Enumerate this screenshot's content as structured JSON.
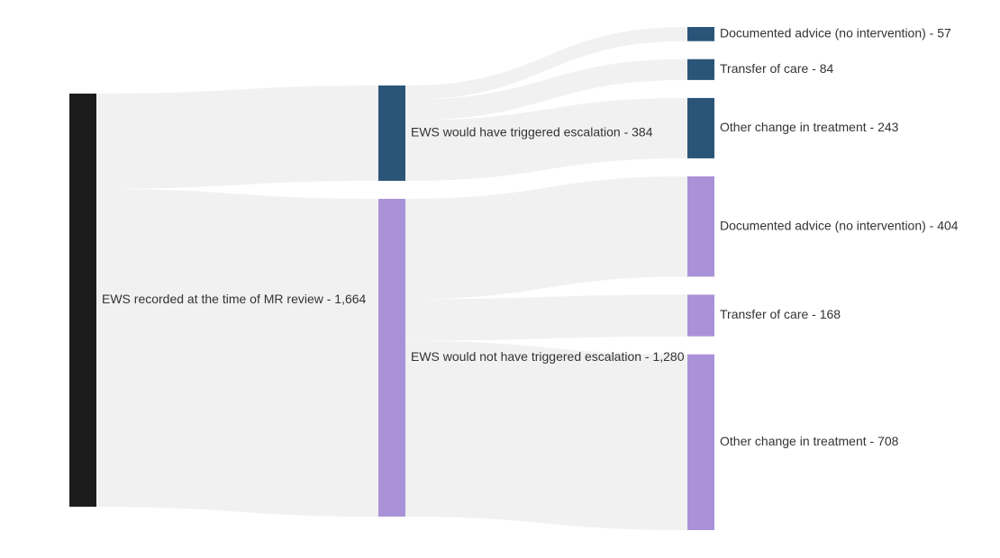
{
  "chart_data": {
    "type": "sankey",
    "colors": {
      "root": "#1c1c1c",
      "triggered": "#2a5478",
      "not_triggered": "#aa92d8",
      "link": "#f1f1f1",
      "label": "#333333"
    },
    "nodes": [
      {
        "id": "root",
        "stage": 0,
        "label": "EWS recorded at the time of MR review - 1,664",
        "value": 1664,
        "color_key": "root"
      },
      {
        "id": "trig",
        "stage": 1,
        "label": "EWS would have triggered escalation - 384",
        "value": 384,
        "color_key": "triggered"
      },
      {
        "id": "notrig",
        "stage": 1,
        "label": "EWS would not have triggered escalation - 1,280",
        "value": 1280,
        "color_key": "not_triggered"
      },
      {
        "id": "t_doc",
        "stage": 2,
        "label": "Documented advice (no intervention) - 57",
        "value": 57,
        "color_key": "triggered"
      },
      {
        "id": "t_tra",
        "stage": 2,
        "label": "Transfer of care - 84",
        "value": 84,
        "color_key": "triggered"
      },
      {
        "id": "t_oth",
        "stage": 2,
        "label": "Other change in treatment - 243",
        "value": 243,
        "color_key": "triggered"
      },
      {
        "id": "n_doc",
        "stage": 2,
        "label": "Documented advice (no intervention) - 404",
        "value": 404,
        "color_key": "not_triggered"
      },
      {
        "id": "n_tra",
        "stage": 2,
        "label": "Transfer of care - 168",
        "value": 168,
        "color_key": "not_triggered"
      },
      {
        "id": "n_oth",
        "stage": 2,
        "label": "Other change in treatment - 708",
        "value": 708,
        "color_key": "not_triggered"
      }
    ],
    "links": [
      {
        "source": "root",
        "target": "trig",
        "value": 384
      },
      {
        "source": "root",
        "target": "notrig",
        "value": 1280
      },
      {
        "source": "trig",
        "target": "t_doc",
        "value": 57
      },
      {
        "source": "trig",
        "target": "t_tra",
        "value": 84
      },
      {
        "source": "trig",
        "target": "t_oth",
        "value": 243
      },
      {
        "source": "notrig",
        "target": "n_doc",
        "value": 404
      },
      {
        "source": "notrig",
        "target": "n_tra",
        "value": 168
      },
      {
        "source": "notrig",
        "target": "n_oth",
        "value": 708
      }
    ]
  }
}
